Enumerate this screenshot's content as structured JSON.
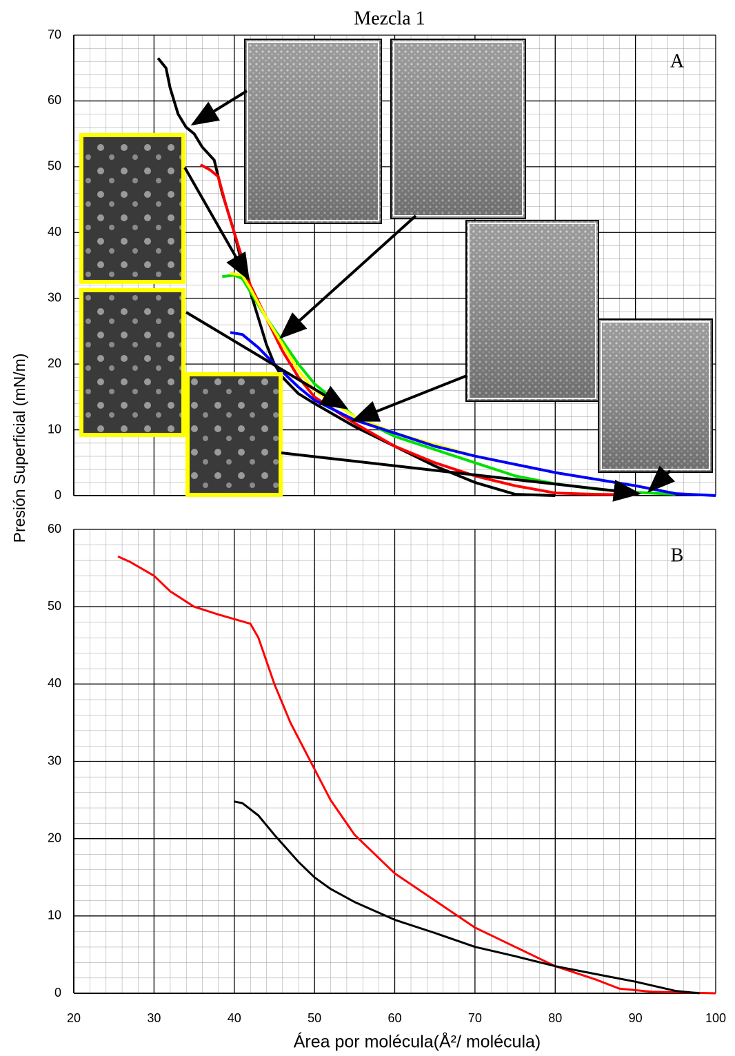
{
  "chart_data": [
    {
      "type": "line",
      "title": "Mezcla 1",
      "panel_label": "A",
      "ylabel": "Presión Superficial (mN/m)",
      "xlim": [
        20,
        100
      ],
      "xticks": [
        20,
        30,
        40,
        50,
        60,
        70,
        80,
        90,
        100
      ],
      "ylim": [
        0,
        70
      ],
      "yticks": [
        0,
        10,
        20,
        30,
        40,
        50,
        60,
        70
      ],
      "grid": true,
      "series": [
        {
          "color": "#000000",
          "x": [
            30.5,
            31.5,
            32,
            33,
            34,
            35,
            36,
            37.5,
            38.5,
            40,
            41,
            42,
            43,
            44,
            45,
            46,
            48,
            50,
            55,
            60,
            65,
            70,
            75,
            80
          ],
          "values": [
            66.5,
            65,
            62,
            58,
            56,
            55,
            53,
            51,
            46,
            40,
            35,
            31,
            27,
            23,
            20,
            18,
            15.5,
            14,
            10.5,
            7.5,
            4.5,
            2,
            0.2,
            0
          ]
        },
        {
          "color": "#ff0000",
          "x": [
            35.8,
            37,
            38,
            39,
            40,
            41,
            42,
            44,
            46,
            48,
            50,
            55,
            60,
            65,
            70,
            75,
            80,
            85,
            90
          ],
          "values": [
            50.3,
            49.5,
            48.5,
            44,
            40,
            36,
            32,
            27,
            22,
            18,
            15,
            11,
            7.5,
            5,
            3,
            1.5,
            0.4,
            0.2,
            0.1
          ]
        },
        {
          "color": "#00e000",
          "x": [
            38.5,
            40,
            41,
            42,
            44,
            46,
            48,
            50,
            55,
            60,
            65,
            70,
            75,
            80,
            85,
            90,
            95
          ],
          "values": [
            33.3,
            33.5,
            33,
            31,
            27,
            23.5,
            20,
            17,
            12,
            9,
            7,
            5,
            3,
            1.8,
            1,
            0.5,
            0.2
          ]
        },
        {
          "color": "#ffff00",
          "x": [
            39.5,
            41,
            42,
            44,
            46,
            48,
            50,
            55,
            60,
            70,
            80,
            90,
            95
          ],
          "values": [
            33.8,
            33.5,
            31.5,
            27,
            23,
            19,
            16,
            12,
            9.5,
            6,
            3.5,
            1.5,
            0.3
          ]
        },
        {
          "color": "#0000ff",
          "x": [
            39.5,
            41,
            43,
            45,
            48,
            50,
            55,
            60,
            65,
            70,
            80,
            90,
            95,
            100
          ],
          "values": [
            24.8,
            24.5,
            22.5,
            20,
            16.5,
            14.5,
            11.5,
            9.5,
            7.5,
            6,
            3.5,
            1.5,
            0.3,
            0
          ]
        }
      ]
    },
    {
      "type": "line",
      "panel_label": "B",
      "xlabel": "Área por molécula(Å²/ molécula)",
      "xlim": [
        20,
        100
      ],
      "xticks": [
        20,
        30,
        40,
        50,
        60,
        70,
        80,
        90,
        100
      ],
      "ylim": [
        0,
        60
      ],
      "yticks": [
        0,
        10,
        20,
        30,
        40,
        50,
        60
      ],
      "grid": true,
      "series": [
        {
          "color": "#ff0000",
          "x": [
            25.5,
            27,
            30,
            32,
            35,
            38,
            42,
            43,
            45,
            47,
            50,
            52,
            55,
            60,
            65,
            70,
            75,
            80,
            85,
            88,
            92,
            96,
            100
          ],
          "values": [
            56.5,
            55.8,
            54,
            52,
            50,
            49,
            47.8,
            46,
            40,
            35,
            29,
            25,
            20.5,
            15.5,
            12,
            8.5,
            6,
            3.5,
            1.8,
            0.6,
            0.2,
            0.1,
            0
          ]
        },
        {
          "color": "#000000",
          "x": [
            40,
            41,
            43,
            45,
            48,
            50,
            52,
            55,
            60,
            65,
            70,
            75,
            80,
            85,
            90,
            95,
            98
          ],
          "values": [
            24.8,
            24.6,
            23,
            20.5,
            17,
            15,
            13.5,
            11.8,
            9.5,
            7.8,
            6,
            4.8,
            3.5,
            2.5,
            1.5,
            0.3,
            0
          ]
        }
      ]
    }
  ]
}
